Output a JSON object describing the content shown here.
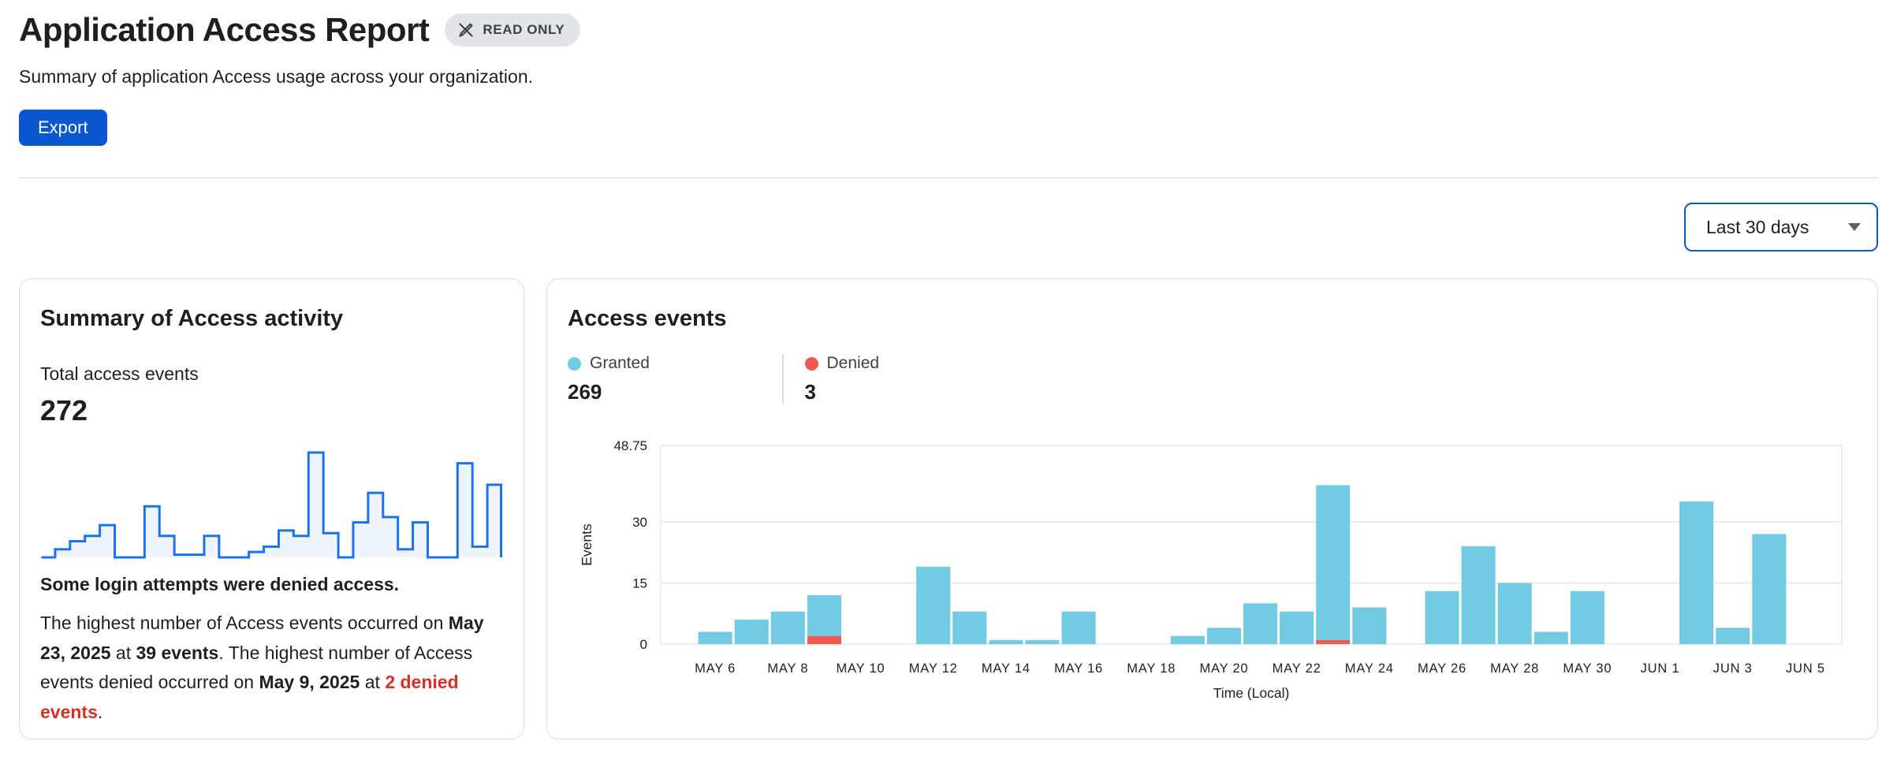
{
  "header": {
    "title": "Application Access Report",
    "badge_label": "READ ONLY",
    "subtitle": "Summary of application Access usage across your organization.",
    "export_label": "Export"
  },
  "filters": {
    "date_range": "Last 30 days"
  },
  "summary_card": {
    "title": "Summary of Access activity",
    "metric_label": "Total access events",
    "metric_value": "272",
    "note": "Some login attempts were denied access.",
    "detail": {
      "part1": "The highest number of Access events occurred on ",
      "bold1": "May 23, 2025",
      "part2": " at ",
      "bold2": "39 events",
      "part3": ". The highest number of Access events denied occurred on ",
      "bold3": "May 9, 2025",
      "part4": " at ",
      "red": "2 denied events",
      "part5": "."
    }
  },
  "events_card": {
    "title": "Access events",
    "legend": [
      {
        "label": "Granted",
        "value": "269",
        "color": "#72cbe2"
      },
      {
        "label": "Denied",
        "value": "3",
        "color": "#f2594e"
      }
    ]
  },
  "colors": {
    "accent_blue": "#0b57d0",
    "granted_bar": "#72cbe2",
    "denied_bar": "#f2594e",
    "sparkline_stroke": "#1a73e8",
    "sparkline_fill": "#eff4fc",
    "grid_line": "#e6e6e8",
    "axis_text": "#1f1f1f",
    "denied_text": "#d93025"
  },
  "chart_data": [
    {
      "id": "activity-sparkline",
      "type": "area",
      "step": true,
      "title": "Total access events per day (sparkline)",
      "values": [
        0,
        3,
        6,
        8,
        12,
        0,
        0,
        19,
        8,
        1,
        1,
        8,
        0,
        0,
        2,
        4,
        10,
        8,
        39,
        9,
        0,
        13,
        24,
        15,
        3,
        13,
        0,
        0,
        35,
        4,
        27
      ],
      "ymax": 39,
      "line_color": "#1a73e8",
      "fill_color": "#eff4fc",
      "grid": false,
      "axes_shown": false
    },
    {
      "id": "access-events-chart",
      "type": "bar",
      "stacked": true,
      "title": "Access events",
      "categories": [
        "MAY 6",
        "MAY 7",
        "MAY 8",
        "MAY 9",
        "MAY 10",
        "MAY 11",
        "MAY 12",
        "MAY 13",
        "MAY 14",
        "MAY 15",
        "MAY 16",
        "MAY 17",
        "MAY 18",
        "MAY 19",
        "MAY 20",
        "MAY 21",
        "MAY 22",
        "MAY 23",
        "MAY 24",
        "MAY 25",
        "MAY 26",
        "MAY 27",
        "MAY 28",
        "MAY 29",
        "MAY 30",
        "MAY 31",
        "JUN 1",
        "JUN 2",
        "JUN 3",
        "JUN 4",
        "JUN 5"
      ],
      "series": [
        {
          "name": "Denied",
          "color": "#f2594e",
          "values": [
            0,
            0,
            0,
            2,
            0,
            0,
            0,
            0,
            0,
            0,
            0,
            0,
            0,
            0,
            0,
            0,
            0,
            1,
            0,
            0,
            0,
            0,
            0,
            0,
            0,
            0,
            0,
            0,
            0,
            0,
            0
          ]
        },
        {
          "name": "Granted",
          "color": "#72cbe2",
          "values": [
            3,
            6,
            8,
            10,
            0,
            0,
            19,
            8,
            1,
            1,
            8,
            0,
            0,
            2,
            4,
            10,
            8,
            38,
            9,
            0,
            13,
            24,
            15,
            3,
            13,
            0,
            0,
            35,
            4,
            27,
            0
          ]
        }
      ],
      "xlabel": "Time (Local)",
      "ylabel": "Events",
      "ylim": [
        0,
        48.75
      ],
      "yticks": [
        0,
        15,
        30,
        48.75
      ],
      "ytick_labels": [
        "0",
        "15",
        "30",
        "48.75"
      ],
      "xtick_every": 2,
      "grid": true,
      "legend_position": "top-left-above-chart"
    }
  ]
}
